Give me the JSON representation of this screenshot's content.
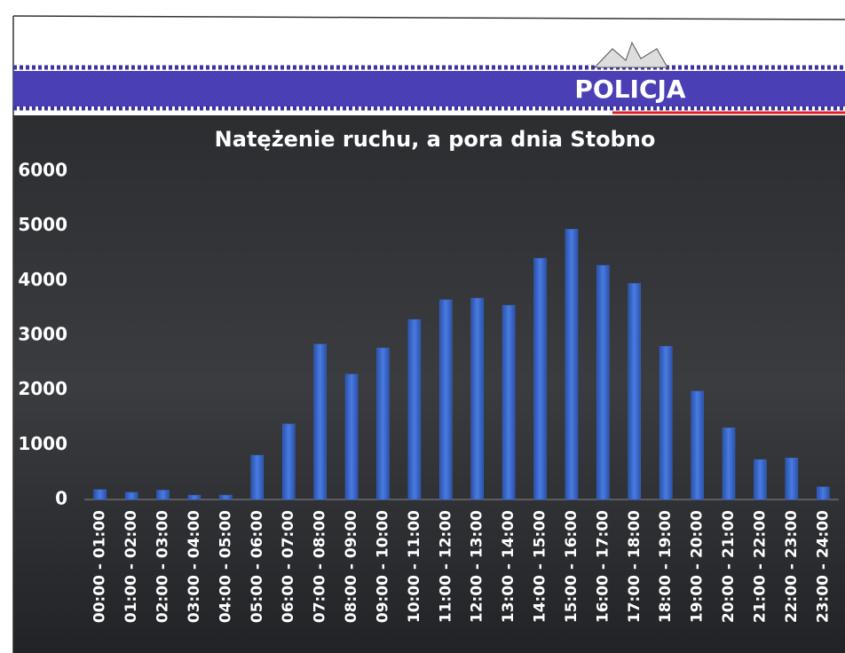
{
  "brand": "POLICJA",
  "chart_data": {
    "type": "bar",
    "title": "Natężenie ruchu, a pora dnia Stobno",
    "categories": [
      "00:00 - 01:00",
      "01:00 - 02:00",
      "02:00 - 03:00",
      "03:00 - 04:00",
      "04:00 - 05:00",
      "05:00 - 06:00",
      "06:00 - 07:00",
      "07:00 - 08:00",
      "08:00 - 09:00",
      "09:00 - 10:00",
      "10:00 - 11:00",
      "11:00 - 12:00",
      "12:00 - 13:00",
      "13:00 - 14:00",
      "14:00 - 15:00",
      "15:00 - 16:00",
      "16:00 - 17:00",
      "17:00 - 18:00",
      "18:00 - 19:00",
      "19:00 - 20:00",
      "20:00 - 21:00",
      "21:00 - 22:00",
      "22:00 - 23:00",
      "23:00 - 24:00"
    ],
    "values": [
      180,
      130,
      170,
      80,
      80,
      810,
      1380,
      2840,
      2290,
      2770,
      3290,
      3650,
      3680,
      3550,
      4410,
      4940,
      4280,
      3950,
      2800,
      1980,
      1310,
      730,
      760,
      230
    ],
    "color": "#3a67cc",
    "ylim": [
      0,
      6000
    ],
    "yticks": [
      0,
      1000,
      2000,
      3000,
      4000,
      5000,
      6000
    ],
    "grid": false
  }
}
